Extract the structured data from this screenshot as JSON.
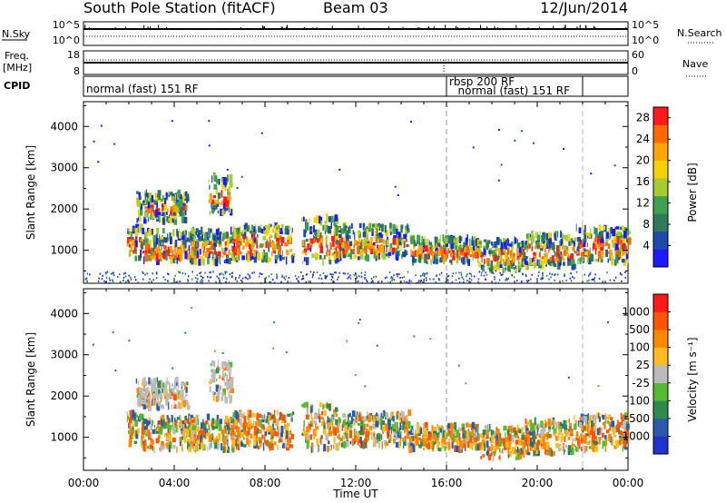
{
  "header": {
    "station": "South Pole Station (fitACF)",
    "beam": "Beam 03",
    "date": "12/Jun/2014"
  },
  "strips": {
    "nsky_label": "N.Sky",
    "nsearch_label": "N.Search",
    "nsky_ticks": [
      "10^5",
      "10^0"
    ],
    "freq_label_line1": "Freq.",
    "freq_label_line2": "[MHz]",
    "freq_ticks": [
      "18",
      "8"
    ],
    "nave_ticks": [
      "60",
      "0"
    ],
    "nave_label": "Nave",
    "cpid_label": "CPID",
    "cpid_segments": [
      {
        "label": "normal (fast) 151 RF",
        "start_hour": 0,
        "end_hour": 16
      },
      {
        "label": "rbsp 200 RF",
        "start_hour": 16,
        "end_hour": 16.1
      },
      {
        "label": "normal (fast) 151 RF",
        "start_hour": 16.1,
        "end_hour": 22
      }
    ],
    "cpid_boundaries_hours": [
      16,
      22
    ]
  },
  "colors": {
    "power_scale": [
      "#1a1aff",
      "#1c4ca8",
      "#2f7a5a",
      "#3fa24e",
      "#a6cc33",
      "#f5d100",
      "#ffa500",
      "#ff6a00",
      "#ff1a1a"
    ],
    "velocity_scale": [
      "#2233cc",
      "#2a5aa8",
      "#2f8a50",
      "#55bb33",
      "#bbbbbb",
      "#ffbb22",
      "#ff8800",
      "#ff5500",
      "#ff1a1a"
    ]
  },
  "chart_data": [
    {
      "type": "heatmap",
      "title": "",
      "xlabel": "Time UT",
      "ylabel": "Slant Range [km]",
      "x_ticks": [
        "00:00",
        "04:00",
        "08:00",
        "12:00",
        "16:00",
        "20:00",
        "00:00"
      ],
      "y_ticks": [
        "1000",
        "2000",
        "3000",
        "4000"
      ],
      "ylim": [
        200,
        4600
      ],
      "xlim_hours": [
        0,
        24
      ],
      "colorbar": {
        "label": "Power [dB]",
        "ticks": [
          "4",
          "8",
          "12",
          "16",
          "20",
          "24",
          "28"
        ],
        "range": [
          0,
          30
        ]
      }
    },
    {
      "type": "heatmap",
      "title": "",
      "xlabel": "Time UT",
      "ylabel": "Slant Range [km]",
      "x_ticks": [
        "00:00",
        "04:00",
        "08:00",
        "12:00",
        "16:00",
        "20:00",
        "00:00"
      ],
      "y_ticks": [
        "1000",
        "2000",
        "3000",
        "4000"
      ],
      "ylim": [
        200,
        4600
      ],
      "xlim_hours": [
        0,
        24
      ],
      "colorbar": {
        "label": "Velocity [m s⁻¹]",
        "ticks": [
          "1000",
          "500",
          "100",
          "25",
          "-25",
          "-100",
          "-500",
          "-1000"
        ]
      }
    }
  ]
}
